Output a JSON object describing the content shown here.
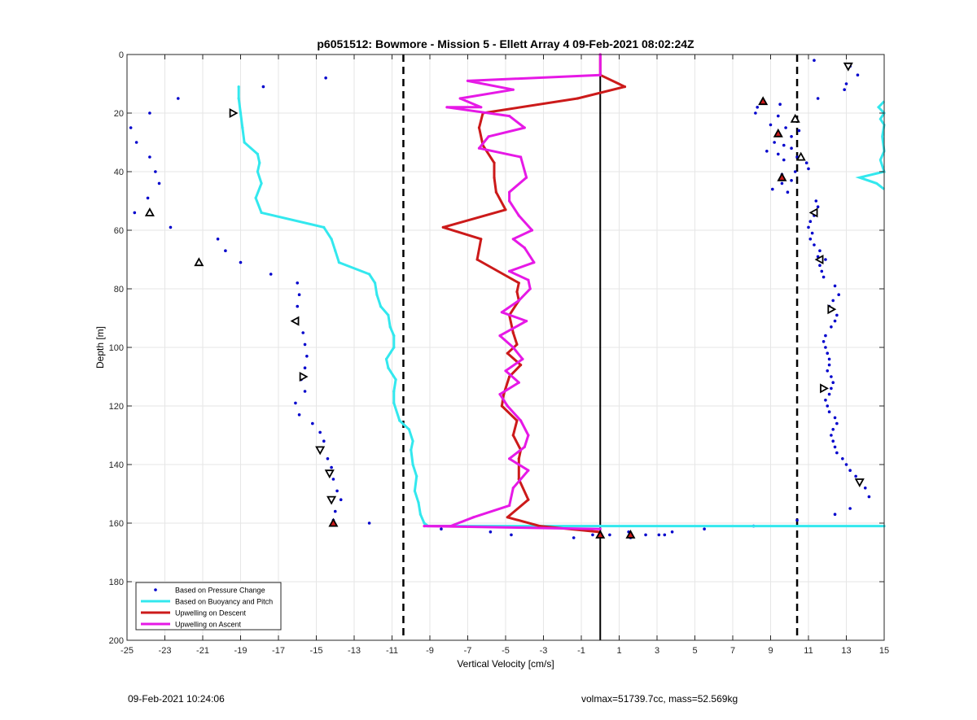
{
  "chart_data": {
    "type": "scatter",
    "title": "p6051512: Bowmore - Mission 5 - Ellett Array 4 09-Feb-2021 08:02:24Z",
    "xlabel": "Vertical Velocity [cm/s]",
    "ylabel": "Depth [m]",
    "xlim": [
      -25,
      15
    ],
    "ylim": [
      0,
      200
    ],
    "y_reversed": true,
    "grid": true,
    "legend_position": "bottom-left",
    "xticks": [
      "-25",
      "-23",
      "-21",
      "-19",
      "-17",
      "-15",
      "-13",
      "-11",
      "-9",
      "-7",
      "-5",
      "-3",
      "-1",
      "1",
      "3",
      "5",
      "7",
      "9",
      "11",
      "13",
      "15"
    ],
    "yticks": [
      "0",
      "20",
      "40",
      "60",
      "80",
      "100",
      "120",
      "140",
      "160",
      "180",
      "200"
    ],
    "reference_lines": [
      {
        "x": 0,
        "style": "solid",
        "color": "#000000"
      },
      {
        "x": -10.4,
        "style": "dashed",
        "color": "#000000"
      },
      {
        "x": 10.4,
        "style": "dashed",
        "color": "#000000"
      }
    ],
    "series": [
      {
        "name": "Based on Pressure Change",
        "kind": "points",
        "color": "#0000cc",
        "points": [
          [
            11.3,
            2
          ],
          [
            13.2,
            4
          ],
          [
            13.6,
            7
          ],
          [
            13.0,
            10
          ],
          [
            12.9,
            12
          ],
          [
            11.5,
            15
          ],
          [
            -14.5,
            8
          ],
          [
            -17.8,
            11
          ],
          [
            -22.3,
            15
          ],
          [
            -23.8,
            20
          ],
          [
            -24.8,
            25
          ],
          [
            -24.5,
            30
          ],
          [
            -23.8,
            35
          ],
          [
            -23.5,
            40
          ],
          [
            -23.3,
            44
          ],
          [
            -23.9,
            49
          ],
          [
            -24.6,
            54
          ],
          [
            -22.7,
            59
          ],
          [
            -20.2,
            63
          ],
          [
            -19.8,
            67
          ],
          [
            -19.0,
            71
          ],
          [
            -17.4,
            75
          ],
          [
            -16.0,
            78
          ],
          [
            -15.9,
            82
          ],
          [
            -16.0,
            86
          ],
          [
            -16.1,
            91
          ],
          [
            -15.7,
            95
          ],
          [
            -15.6,
            99
          ],
          [
            -15.5,
            103
          ],
          [
            -15.6,
            107
          ],
          [
            -15.8,
            111
          ],
          [
            -15.6,
            115
          ],
          [
            -16.1,
            119
          ],
          [
            -15.9,
            123
          ],
          [
            -15.2,
            126
          ],
          [
            -14.8,
            129
          ],
          [
            -14.6,
            132
          ],
          [
            -14.4,
            138
          ],
          [
            -14.2,
            141
          ],
          [
            -14.1,
            145
          ],
          [
            -13.9,
            149
          ],
          [
            -13.7,
            152
          ],
          [
            -14.0,
            156
          ],
          [
            -14.1,
            159
          ],
          [
            -12.2,
            160
          ],
          [
            8.3,
            18
          ],
          [
            8.2,
            20
          ],
          [
            9.5,
            17
          ],
          [
            9.4,
            21
          ],
          [
            9.0,
            24
          ],
          [
            9.8,
            25
          ],
          [
            10.5,
            26
          ],
          [
            10.1,
            28
          ],
          [
            9.2,
            30
          ],
          [
            9.7,
            31
          ],
          [
            10.1,
            32
          ],
          [
            8.8,
            33
          ],
          [
            9.4,
            34
          ],
          [
            10.4,
            35
          ],
          [
            9.7,
            36
          ],
          [
            10.9,
            37
          ],
          [
            11.0,
            39
          ],
          [
            10.3,
            40
          ],
          [
            9.6,
            41
          ],
          [
            10.1,
            43
          ],
          [
            9.6,
            44
          ],
          [
            9.1,
            46
          ],
          [
            9.9,
            47
          ],
          [
            11.4,
            50
          ],
          [
            11.5,
            52
          ],
          [
            11.3,
            55
          ],
          [
            11.1,
            57
          ],
          [
            11.0,
            59
          ],
          [
            11.2,
            61
          ],
          [
            11.1,
            63
          ],
          [
            11.3,
            65
          ],
          [
            11.6,
            67
          ],
          [
            11.5,
            69
          ],
          [
            11.9,
            70
          ],
          [
            11.6,
            72
          ],
          [
            11.7,
            74
          ],
          [
            11.8,
            76
          ],
          [
            12.4,
            79
          ],
          [
            12.6,
            82
          ],
          [
            12.3,
            84
          ],
          [
            12.1,
            86
          ],
          [
            12.5,
            89
          ],
          [
            12.4,
            91
          ],
          [
            12.2,
            93
          ],
          [
            11.9,
            96
          ],
          [
            11.8,
            98
          ],
          [
            11.9,
            100
          ],
          [
            12.0,
            102
          ],
          [
            12.1,
            104
          ],
          [
            12.1,
            106
          ],
          [
            12.0,
            108
          ],
          [
            12.2,
            110
          ],
          [
            12.3,
            112
          ],
          [
            12.2,
            114
          ],
          [
            12.1,
            116
          ],
          [
            11.9,
            118
          ],
          [
            12.0,
            120
          ],
          [
            12.1,
            122
          ],
          [
            12.4,
            124
          ],
          [
            12.5,
            126
          ],
          [
            12.3,
            128
          ],
          [
            12.2,
            130
          ],
          [
            12.3,
            132
          ],
          [
            12.4,
            134
          ],
          [
            12.5,
            136
          ],
          [
            12.8,
            138
          ],
          [
            13.0,
            140
          ],
          [
            13.2,
            142
          ],
          [
            13.5,
            144
          ],
          [
            14.0,
            148
          ],
          [
            14.2,
            151
          ],
          [
            13.2,
            155
          ],
          [
            12.4,
            157
          ],
          [
            10.4,
            159
          ],
          [
            -8.4,
            162
          ],
          [
            -5.8,
            163
          ],
          [
            -4.7,
            164
          ],
          [
            -1.4,
            165
          ],
          [
            -0.4,
            164
          ],
          [
            0.5,
            164
          ],
          [
            1.5,
            163
          ],
          [
            1.6,
            165
          ],
          [
            2.4,
            164
          ],
          [
            3.1,
            164
          ],
          [
            3.4,
            164
          ],
          [
            3.8,
            163
          ],
          [
            5.5,
            162
          ],
          [
            8.1,
            161
          ]
        ]
      },
      {
        "name": "Based on Buoyancy and Pitch",
        "kind": "line",
        "color": "#33e8ee",
        "points": [
          [
            -19.1,
            11
          ],
          [
            -19.1,
            15
          ],
          [
            -19.0,
            20
          ],
          [
            -18.9,
            25
          ],
          [
            -18.8,
            30
          ],
          [
            -18.1,
            34
          ],
          [
            -18.0,
            37
          ],
          [
            -18.1,
            40
          ],
          [
            -17.9,
            44
          ],
          [
            -18.2,
            49
          ],
          [
            -17.9,
            54
          ],
          [
            -14.6,
            59
          ],
          [
            -14.2,
            63
          ],
          [
            -14.0,
            67
          ],
          [
            -13.8,
            71
          ],
          [
            -12.2,
            75
          ],
          [
            -11.9,
            78
          ],
          [
            -11.8,
            82
          ],
          [
            -11.6,
            86
          ],
          [
            -11.2,
            89
          ],
          [
            -11.1,
            93
          ],
          [
            -10.9,
            96
          ],
          [
            -10.9,
            100
          ],
          [
            -11.3,
            104
          ],
          [
            -11.2,
            107
          ],
          [
            -10.8,
            111
          ],
          [
            -10.9,
            115
          ],
          [
            -10.9,
            119
          ],
          [
            -10.6,
            125
          ],
          [
            -10.1,
            128
          ],
          [
            -9.9,
            132
          ],
          [
            -10.0,
            135
          ],
          [
            -9.9,
            140
          ],
          [
            -9.7,
            144
          ],
          [
            -9.8,
            149
          ],
          [
            -9.6,
            153
          ],
          [
            -9.5,
            157
          ],
          [
            -9.3,
            160
          ],
          [
            -9.1,
            161
          ],
          [
            0.0,
            161
          ],
          [
            15.0,
            161
          ]
        ]
      },
      {
        "name": "Upwelling on Descent",
        "kind": "line",
        "color": "#cc1a1a",
        "points": [
          [
            0.0,
            0
          ],
          [
            0.0,
            7
          ],
          [
            1.3,
            11
          ],
          [
            -1.2,
            15
          ],
          [
            -6.2,
            20
          ],
          [
            -6.4,
            25
          ],
          [
            -6.2,
            31
          ],
          [
            -5.6,
            37
          ],
          [
            -5.6,
            42
          ],
          [
            -5.5,
            47
          ],
          [
            -5.0,
            53
          ],
          [
            -8.3,
            59
          ],
          [
            -6.3,
            63
          ],
          [
            -6.5,
            70
          ],
          [
            -4.3,
            78
          ],
          [
            -4.4,
            81
          ],
          [
            -4.3,
            84
          ],
          [
            -4.8,
            89
          ],
          [
            -4.6,
            95
          ],
          [
            -4.4,
            99
          ],
          [
            -4.9,
            102
          ],
          [
            -4.2,
            106
          ],
          [
            -4.8,
            110
          ],
          [
            -5.1,
            116
          ],
          [
            -5.2,
            120
          ],
          [
            -4.4,
            125
          ],
          [
            -4.6,
            130
          ],
          [
            -4.2,
            135
          ],
          [
            -4.3,
            138
          ],
          [
            -4.3,
            145
          ],
          [
            -3.8,
            152
          ],
          [
            -4.9,
            158
          ],
          [
            -3.2,
            161
          ],
          [
            -0.1,
            163
          ]
        ]
      },
      {
        "name": "Upwelling on Ascent",
        "kind": "line",
        "color": "#e619e6",
        "points": [
          [
            0.0,
            0
          ],
          [
            0.0,
            7
          ],
          [
            -7.0,
            9
          ],
          [
            -4.6,
            12
          ],
          [
            -7.4,
            15
          ],
          [
            -6.3,
            18
          ],
          [
            -8.1,
            18
          ],
          [
            -4.8,
            21
          ],
          [
            -4.0,
            25
          ],
          [
            -5.9,
            28
          ],
          [
            -6.4,
            32
          ],
          [
            -4.2,
            35
          ],
          [
            -3.9,
            42
          ],
          [
            -4.8,
            47
          ],
          [
            -4.8,
            50
          ],
          [
            -4.3,
            55
          ],
          [
            -3.6,
            60
          ],
          [
            -4.6,
            63
          ],
          [
            -4.0,
            66
          ],
          [
            -3.5,
            71
          ],
          [
            -4.8,
            74
          ],
          [
            -3.8,
            77
          ],
          [
            -3.7,
            80
          ],
          [
            -4.3,
            84
          ],
          [
            -5.2,
            88
          ],
          [
            -3.9,
            91
          ],
          [
            -5.3,
            96
          ],
          [
            -4.6,
            100
          ],
          [
            -4.1,
            104
          ],
          [
            -5.0,
            108
          ],
          [
            -4.3,
            112
          ],
          [
            -5.3,
            116
          ],
          [
            -4.9,
            120
          ],
          [
            -4.2,
            125
          ],
          [
            -3.8,
            130
          ],
          [
            -4.0,
            134
          ],
          [
            -4.8,
            138
          ],
          [
            -3.8,
            142
          ],
          [
            -4.6,
            148
          ],
          [
            -4.8,
            154
          ],
          [
            -6.7,
            158
          ],
          [
            -7.9,
            161
          ],
          [
            -9.3,
            161
          ],
          [
            0.0,
            162
          ]
        ]
      }
    ],
    "markers": [
      {
        "x": 13.1,
        "y": 4,
        "shape": "triangle-down",
        "fill": "#ffffff"
      },
      {
        "x": 10.3,
        "y": 22,
        "shape": "triangle-up",
        "fill": "#ffffff"
      },
      {
        "x": 10.6,
        "y": 35,
        "shape": "triangle-up",
        "fill": "#ffffff"
      },
      {
        "x": 11.3,
        "y": 54,
        "shape": "triangle-left",
        "fill": "#ffffff"
      },
      {
        "x": 11.6,
        "y": 70,
        "shape": "triangle-left",
        "fill": "#ffffff"
      },
      {
        "x": 12.2,
        "y": 87,
        "shape": "triangle-right",
        "fill": "#ffffff"
      },
      {
        "x": 11.8,
        "y": 114,
        "shape": "triangle-right",
        "fill": "#ffffff"
      },
      {
        "x": 13.7,
        "y": 146,
        "shape": "triangle-down",
        "fill": "#ffffff"
      },
      {
        "x": 8.6,
        "y": 16,
        "shape": "triangle-up",
        "fill": "#cc1a1a"
      },
      {
        "x": 9.4,
        "y": 27,
        "shape": "triangle-up",
        "fill": "#cc1a1a"
      },
      {
        "x": 9.6,
        "y": 42,
        "shape": "triangle-up",
        "fill": "#cc1a1a"
      },
      {
        "x": -19.4,
        "y": 20,
        "shape": "triangle-right",
        "fill": "#ffffff"
      },
      {
        "x": -23.8,
        "y": 54,
        "shape": "triangle-up",
        "fill": "#ffffff"
      },
      {
        "x": -21.2,
        "y": 71,
        "shape": "triangle-up",
        "fill": "#ffffff"
      },
      {
        "x": -16.1,
        "y": 91,
        "shape": "triangle-left",
        "fill": "#ffffff"
      },
      {
        "x": -15.7,
        "y": 110,
        "shape": "triangle-right",
        "fill": "#ffffff"
      },
      {
        "x": -14.8,
        "y": 135,
        "shape": "triangle-down",
        "fill": "#ffffff"
      },
      {
        "x": -14.3,
        "y": 143,
        "shape": "triangle-down",
        "fill": "#ffffff"
      },
      {
        "x": -14.2,
        "y": 152,
        "shape": "triangle-down",
        "fill": "#ffffff"
      },
      {
        "x": -14.1,
        "y": 160,
        "shape": "triangle-up",
        "fill": "#cc1a1a"
      },
      {
        "x": 0.0,
        "y": 164,
        "shape": "triangle-up",
        "fill": "#cc1a1a"
      },
      {
        "x": 1.6,
        "y": 164,
        "shape": "triangle-up",
        "fill": "#cc1a1a"
      }
    ],
    "right_edge_cyan_segment": [
      [
        15.0,
        16
      ],
      [
        14.7,
        18
      ],
      [
        15.0,
        20
      ],
      [
        14.8,
        22
      ],
      [
        15.0,
        24
      ],
      [
        14.9,
        28
      ],
      [
        15.0,
        33
      ],
      [
        14.8,
        36
      ],
      [
        15.0,
        40
      ],
      [
        13.7,
        42
      ],
      [
        14.6,
        44
      ],
      [
        15.0,
        46
      ]
    ]
  },
  "footer": {
    "timestamp": "09-Feb-2021 10:24:06",
    "params": "volmax=51739.7cc, mass=52.569kg"
  }
}
